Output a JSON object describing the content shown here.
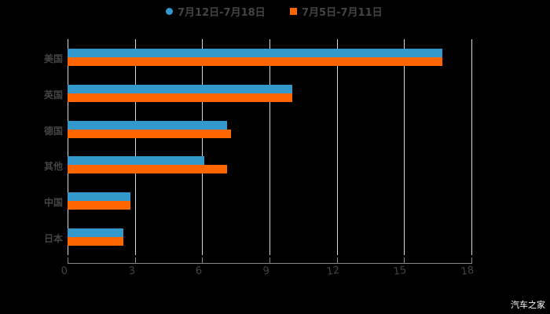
{
  "chart_data": {
    "type": "bar",
    "orientation": "horizontal",
    "title": "",
    "xlabel": "",
    "ylabel": "",
    "categories": [
      "美国",
      "英国",
      "德国",
      "其他",
      "中国",
      "日本"
    ],
    "series": [
      {
        "name": "7月12日-7月18日",
        "color": "#3399cc",
        "marker": "circle",
        "values": [
          16.7,
          10.0,
          7.1,
          6.1,
          2.8,
          2.5
        ]
      },
      {
        "name": "7月5日-7月11日",
        "color": "#ff6600",
        "marker": "square",
        "values": [
          16.7,
          10.0,
          7.3,
          7.1,
          2.8,
          2.5
        ]
      }
    ],
    "xlim": [
      0,
      18
    ],
    "xticks": [
      0,
      3,
      6,
      9,
      12,
      15,
      18
    ],
    "grid": true,
    "legend_position": "top"
  },
  "legend": {
    "items": [
      {
        "label": "7月12日-7月18日",
        "color": "#3399cc"
      },
      {
        "label": "7月5日-7月11日",
        "color": "#ff6600"
      }
    ]
  },
  "axis": {
    "ticks": [
      "0",
      "3",
      "6",
      "9",
      "12",
      "15",
      "18"
    ]
  },
  "categories": [
    "美国",
    "英国",
    "德国",
    "其他",
    "中国",
    "日本"
  ],
  "watermark": "汽车之家"
}
